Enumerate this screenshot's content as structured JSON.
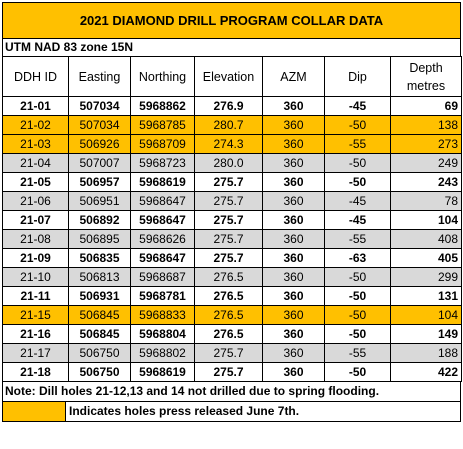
{
  "title": "2021 DIAMOND DRILL PROGRAM COLLAR DATA",
  "subtitle": "UTM NAD 83 zone 15N",
  "columns": [
    "DDH ID",
    "Easting",
    "Northing",
    "Elevation",
    "AZM",
    "Dip",
    "Depth metres"
  ],
  "rows": [
    {
      "ddh": "21-01",
      "easting": "507034",
      "northing": "5968862",
      "elevation": "276.9",
      "azm": "360",
      "dip": "-45",
      "depth": "69",
      "style": "white",
      "bold": true
    },
    {
      "ddh": "21-02",
      "easting": "507034",
      "northing": "5968785",
      "elevation": "280.7",
      "azm": "360",
      "dip": "-50",
      "depth": "138",
      "style": "orange",
      "bold": false
    },
    {
      "ddh": "21-03",
      "easting": "506926",
      "northing": "5968709",
      "elevation": "274.3",
      "azm": "360",
      "dip": "-55",
      "depth": "273",
      "style": "orange",
      "bold": false
    },
    {
      "ddh": "21-04",
      "easting": "507007",
      "northing": "5968723",
      "elevation": "280.0",
      "azm": "360",
      "dip": "-50",
      "depth": "249",
      "style": "gray",
      "bold": false
    },
    {
      "ddh": "21-05",
      "easting": "506957",
      "northing": "5968619",
      "elevation": "275.7",
      "azm": "360",
      "dip": "-50",
      "depth": "243",
      "style": "white",
      "bold": true
    },
    {
      "ddh": "21-06",
      "easting": "506951",
      "northing": "5968647",
      "elevation": "275.7",
      "azm": "360",
      "dip": "-45",
      "depth": "78",
      "style": "gray",
      "bold": false
    },
    {
      "ddh": "21-07",
      "easting": "506892",
      "northing": "5968647",
      "elevation": "275.7",
      "azm": "360",
      "dip": "-45",
      "depth": "104",
      "style": "white",
      "bold": true
    },
    {
      "ddh": "21-08",
      "easting": "506895",
      "northing": "5968626",
      "elevation": "275.7",
      "azm": "360",
      "dip": "-55",
      "depth": "408",
      "style": "gray",
      "bold": false
    },
    {
      "ddh": "21-09",
      "easting": "506835",
      "northing": "5968647",
      "elevation": "275.7",
      "azm": "360",
      "dip": "-63",
      "depth": "405",
      "style": "white",
      "bold": true
    },
    {
      "ddh": "21-10",
      "easting": "506813",
      "northing": "5968687",
      "elevation": "276.5",
      "azm": "360",
      "dip": "-50",
      "depth": "299",
      "style": "gray",
      "bold": false
    },
    {
      "ddh": "21-11",
      "easting": "506931",
      "northing": "5968781",
      "elevation": "276.5",
      "azm": "360",
      "dip": "-50",
      "depth": "131",
      "style": "white",
      "bold": true
    },
    {
      "ddh": "21-15",
      "easting": "506845",
      "northing": "5968833",
      "elevation": "276.5",
      "azm": "360",
      "dip": "-50",
      "depth": "104",
      "style": "orange",
      "bold": false
    },
    {
      "ddh": "21-16",
      "easting": "506845",
      "northing": "5968804",
      "elevation": "276.5",
      "azm": "360",
      "dip": "-50",
      "depth": "149",
      "style": "white",
      "bold": true
    },
    {
      "ddh": "21-17",
      "easting": "506750",
      "northing": "5968802",
      "elevation": "275.7",
      "azm": "360",
      "dip": "-55",
      "depth": "188",
      "style": "gray",
      "bold": false
    },
    {
      "ddh": "21-18",
      "easting": "506750",
      "northing": "5968619",
      "elevation": "275.7",
      "azm": "360",
      "dip": "-50",
      "depth": "422",
      "style": "white",
      "bold": true
    }
  ],
  "note": "Note: Dill holes 21-12,13 and 14 not drilled due to spring flooding.",
  "legend": {
    "text": "Indicates holes press released June 7th.",
    "color": "#ffc000"
  },
  "colors": {
    "highlight": "#ffc000",
    "gray": "#d9d9d9"
  }
}
